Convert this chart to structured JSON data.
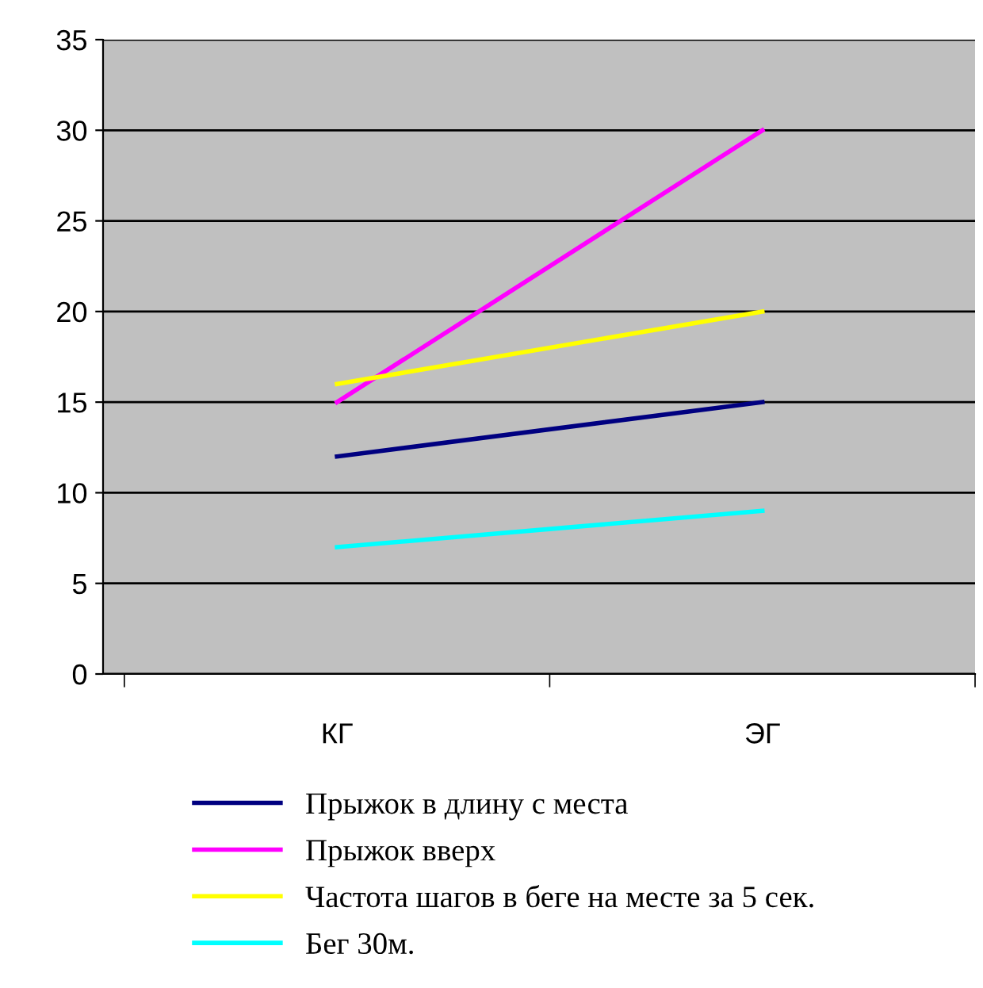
{
  "chart_data": {
    "type": "line",
    "categories": [
      "КГ",
      "ЭГ"
    ],
    "series": [
      {
        "name": "Прыжок в длину с места",
        "color": "#000080",
        "values": [
          12,
          15
        ]
      },
      {
        "name": "Прыжок вверх",
        "color": "#ff00ff",
        "values": [
          15,
          30
        ]
      },
      {
        "name": "Частота шагов в беге на месте за 5 сек.",
        "color": "#ffff00",
        "values": [
          16,
          20
        ]
      },
      {
        "name": "Бег 30м.",
        "color": "#00ffff",
        "values": [
          7,
          9
        ]
      }
    ],
    "ylim": [
      0,
      35
    ],
    "yticks": [
      0,
      5,
      10,
      15,
      20,
      25,
      30,
      35
    ],
    "grid": "y",
    "legend": "bottom",
    "marker": "none",
    "line_style": "solid"
  }
}
